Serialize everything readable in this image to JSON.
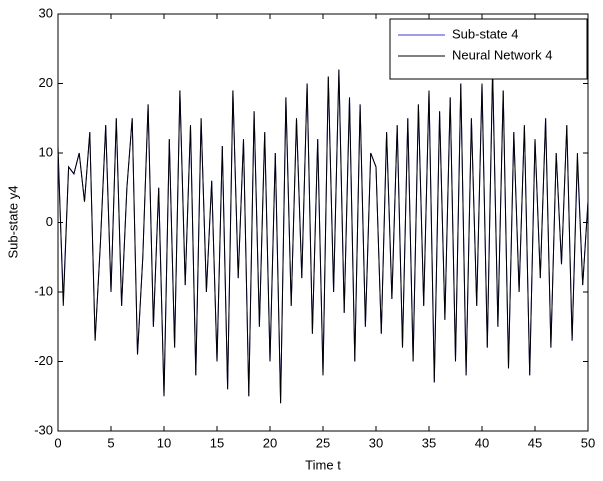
{
  "chart_data": {
    "type": "line",
    "xlabel": "Time t",
    "ylabel": "Sub-state y4",
    "x": [
      0,
      0.5,
      1,
      1.5,
      2,
      2.5,
      3,
      3.5,
      4,
      4.5,
      5,
      5.5,
      6,
      6.5,
      7,
      7.5,
      8,
      8.5,
      9,
      9.5,
      10,
      10.5,
      11,
      11.5,
      12,
      12.5,
      13,
      13.5,
      14,
      14.5,
      15,
      15.5,
      16,
      16.5,
      17,
      17.5,
      18,
      18.5,
      19,
      19.5,
      20,
      20.5,
      21,
      21.5,
      22,
      22.5,
      23,
      23.5,
      24,
      24.5,
      25,
      25.5,
      26,
      26.5,
      27,
      27.5,
      28,
      28.5,
      29,
      29.5,
      30,
      30.5,
      31,
      31.5,
      32,
      32.5,
      33,
      33.5,
      34,
      34.5,
      35,
      35.5,
      36,
      36.5,
      37,
      37.5,
      38,
      38.5,
      39,
      39.5,
      40,
      40.5,
      41,
      41.5,
      42,
      42.5,
      43,
      43.5,
      44,
      44.5,
      45,
      45.5,
      46,
      46.5,
      47,
      47.5,
      48,
      48.5,
      49,
      49.5,
      50
    ],
    "series": [
      {
        "name": "Sub-state 4",
        "color": "#3b3bd6",
        "values": [
          10,
          -11,
          8,
          7,
          10,
          3,
          13,
          -17,
          -3,
          14,
          -10,
          15,
          -12,
          5,
          15,
          -19,
          -5,
          17,
          -15,
          5,
          -25,
          12,
          -18,
          19,
          -9,
          14,
          -22,
          15,
          -10,
          6,
          -20,
          11,
          -24,
          19,
          -8,
          12,
          -25,
          16,
          -15,
          13,
          -20,
          10,
          -26,
          18,
          -12,
          15,
          -8,
          20,
          -16,
          12,
          -22,
          21,
          -10,
          22,
          -13,
          18,
          -20,
          17,
          -15,
          10,
          8,
          -16,
          13,
          -11,
          14,
          -18,
          15,
          -20,
          17,
          -12,
          19,
          -23,
          16,
          -14,
          18,
          -20,
          20,
          -22,
          15,
          -12,
          20,
          -18,
          22,
          -15,
          19,
          -21,
          13,
          -10,
          14,
          -22,
          12,
          -8,
          15,
          -18,
          10,
          -6,
          14,
          -17,
          9,
          -9,
          3
        ]
      },
      {
        "name": "Neural Network 4",
        "color": "#000000",
        "values": [
          11,
          -12,
          8,
          7,
          10,
          3,
          13,
          -17,
          -3,
          14,
          -10,
          15,
          -12,
          5,
          15,
          -19,
          -5,
          17,
          -15,
          5,
          -25,
          12,
          -18,
          19,
          -9,
          14,
          -22,
          15,
          -10,
          6,
          -20,
          11,
          -24,
          19,
          -8,
          12,
          -25,
          16,
          -15,
          13,
          -20,
          10,
          -26,
          18,
          -12,
          15,
          -8,
          20,
          -16,
          12,
          -22,
          21,
          -10,
          22,
          -13,
          18,
          -20,
          17,
          -15,
          10,
          8,
          -16,
          13,
          -11,
          14,
          -18,
          15,
          -20,
          17,
          -12,
          19,
          -23,
          16,
          -14,
          18,
          -20,
          20,
          -22,
          15,
          -12,
          20,
          -18,
          22,
          -15,
          19,
          -21,
          13,
          -10,
          14,
          -22,
          12,
          -8,
          15,
          -18,
          10,
          -6,
          14,
          -17,
          10,
          -9,
          3
        ]
      }
    ],
    "xlim": [
      0,
      50
    ],
    "xticks": [
      0,
      5,
      10,
      15,
      20,
      25,
      30,
      35,
      40,
      45,
      50
    ],
    "ylim": [
      -30,
      30
    ],
    "yticks": [
      -30,
      -20,
      -10,
      0,
      10,
      20,
      30
    ],
    "legend": "top-right"
  }
}
